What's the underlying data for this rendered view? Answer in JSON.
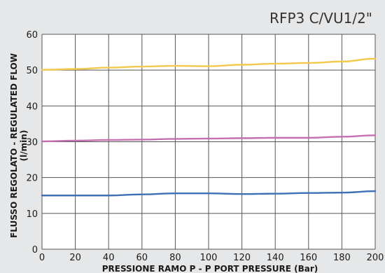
{
  "chart_data": {
    "type": "line",
    "title": "RFP3 C/VU1/2\"",
    "xlabel": "PRESSIONE RAMO P - P PORT PRESSURE (Bar)",
    "ylabel_line1": "FLUSSO REGOLATO - REGULATED FLOW",
    "ylabel_line2": "(l/min)",
    "xlim": [
      0,
      200
    ],
    "ylim": [
      0,
      60
    ],
    "xticks": [
      0,
      20,
      40,
      60,
      80,
      100,
      120,
      140,
      160,
      180,
      200
    ],
    "yticks": [
      0,
      10,
      20,
      30,
      40,
      50,
      60
    ],
    "grid": true,
    "x": [
      0,
      20,
      40,
      60,
      80,
      100,
      120,
      140,
      160,
      180,
      200
    ],
    "series": [
      {
        "color": "#f2c94c",
        "values": [
          50.1,
          50.3,
          50.7,
          51.0,
          51.2,
          51.1,
          51.5,
          51.8,
          52.0,
          52.4,
          53.2
        ]
      },
      {
        "color": "#c46fb0",
        "values": [
          30.1,
          30.3,
          30.5,
          30.6,
          30.8,
          30.9,
          31.0,
          31.1,
          31.1,
          31.4,
          31.8
        ]
      },
      {
        "color": "#3f6fb5",
        "values": [
          15.0,
          15.0,
          15.0,
          15.3,
          15.6,
          15.6,
          15.4,
          15.5,
          15.7,
          15.8,
          16.2
        ]
      }
    ]
  }
}
